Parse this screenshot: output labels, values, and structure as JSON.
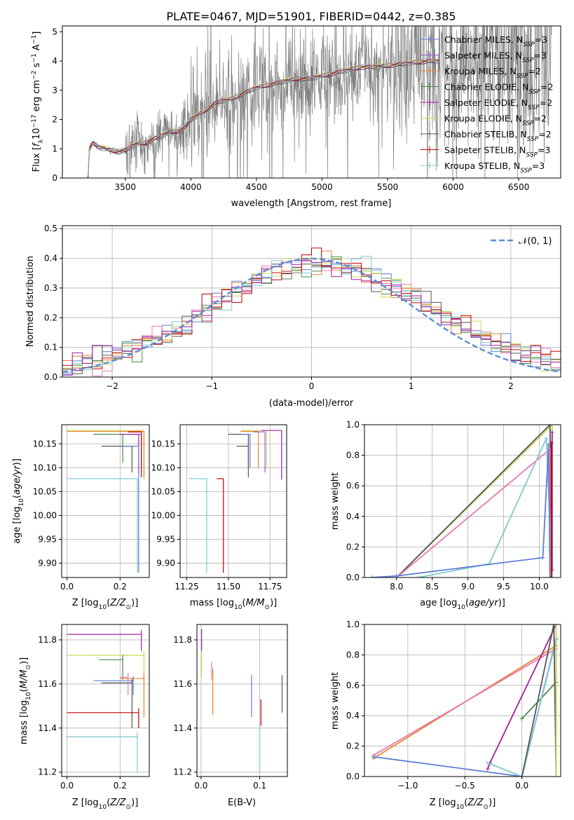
{
  "figure_title": "PLATE=0467, MJD=51901, FIBERID=0442, z=0.385",
  "colors": {
    "chabrier_miles": "#5b7fd6",
    "salpeter_miles": "#9b59c9",
    "kroupa_miles": "#e8822e",
    "chabrier_elodie": "#4a8a4a",
    "salpeter_elodie": "#a020a0",
    "kroupa_elodie": "#c8d858",
    "chabrier_stelib": "#555555",
    "salpeter_stelib": "#c00000",
    "kroupa_stelib": "#80c8d0",
    "data": "#808080",
    "pink": "#e878b0",
    "gauss": "#5b8dd6"
  },
  "chart_data": [
    {
      "id": "spectrum",
      "type": "line",
      "xlabel": "wavelength [Angstrom, rest frame]",
      "ylabel": "Flux [f_λ10^-17 erg cm^-2 s^-1 A^-1]",
      "xlim": [
        3020,
        6820
      ],
      "ylim": [
        0,
        5.2
      ],
      "xticks": [
        3500,
        4000,
        4500,
        5000,
        5500,
        6000,
        6500
      ],
      "yticks": [
        0,
        1,
        2,
        3,
        4,
        5
      ],
      "legend_position": "top-right",
      "legend": [
        "Chabrier MILES, N_SSP=3",
        "Salpeter MILES, N_SSP=3",
        "Kroupa MILES, N_SSP=2",
        "Chabrier ELODIE, N_SSP=2",
        "Salpeter ELODIE, N_SSP=2",
        "Kroupa ELODIE, N_SSP=2",
        "Chabrier STELIB, N_SSP=2",
        "Salpeter STELIB, N_SSP=3",
        "Kroupa STELIB, N_SSP=3"
      ],
      "model_continuum": [
        [
          3200,
          0.0
        ],
        [
          3215,
          0.02
        ],
        [
          3225,
          1.0
        ],
        [
          3250,
          1.2
        ],
        [
          3300,
          1.05
        ],
        [
          3350,
          1.0
        ],
        [
          3400,
          0.95
        ],
        [
          3450,
          0.9
        ],
        [
          3500,
          0.95
        ],
        [
          3550,
          1.1
        ],
        [
          3600,
          1.2
        ],
        [
          3650,
          1.2
        ],
        [
          3700,
          1.3
        ],
        [
          3750,
          1.4
        ],
        [
          3800,
          1.5
        ],
        [
          3850,
          1.6
        ],
        [
          3900,
          1.6
        ],
        [
          3950,
          1.7
        ],
        [
          4000,
          2.0
        ],
        [
          4100,
          2.3
        ],
        [
          4200,
          2.6
        ],
        [
          4300,
          2.7
        ],
        [
          4400,
          2.9
        ],
        [
          4500,
          3.1
        ],
        [
          4600,
          3.2
        ],
        [
          4700,
          3.3
        ],
        [
          4800,
          3.4
        ],
        [
          4900,
          3.4
        ],
        [
          5000,
          3.5
        ],
        [
          5100,
          3.6
        ],
        [
          5200,
          3.7
        ],
        [
          5300,
          3.8
        ],
        [
          5400,
          3.8
        ],
        [
          5500,
          3.85
        ],
        [
          5600,
          3.9
        ],
        [
          5700,
          3.95
        ],
        [
          5800,
          4.0
        ],
        [
          5900,
          4.0
        ]
      ]
    },
    {
      "id": "residual_hist",
      "type": "histogram",
      "xlabel": "(data-model)/error",
      "ylabel": "Normed distribution",
      "xlim": [
        -2.5,
        2.5
      ],
      "ylim": [
        0,
        0.51
      ],
      "xticks": [
        -2,
        -1,
        0,
        1,
        2
      ],
      "yticks": [
        0.0,
        0.1,
        0.2,
        0.3,
        0.4,
        0.5
      ],
      "grid": true,
      "legend_position": "top-right",
      "gauss_label": "𝒩(0, 1)"
    },
    {
      "id": "age_vs_Z",
      "type": "errorbar",
      "xlabel": "Z [log10(Z/Z⊙)]",
      "ylabel": "age  [log10(age/yr)]",
      "xlim": [
        -0.02,
        0.31
      ],
      "ylim": [
        9.87,
        10.19
      ],
      "xticks": [
        0.0,
        0.2
      ],
      "yticks": [
        9.9,
        9.95,
        10.0,
        10.05,
        10.1,
        10.15
      ],
      "grid": true
    },
    {
      "id": "age_vs_mass",
      "type": "errorbar",
      "xlabel": "mass [log10(M/M⊙)]",
      "xlim": [
        11.21,
        11.85
      ],
      "ylim": [
        9.87,
        10.19
      ],
      "xticks": [
        11.25,
        11.5,
        11.75
      ],
      "yticks": [
        9.9,
        9.95,
        10.0,
        10.05,
        10.1,
        10.15
      ],
      "grid": true
    },
    {
      "id": "massweight_vs_age",
      "type": "line",
      "xlabel": "age  [log10(age/yr)]",
      "ylabel": "mass weight",
      "xlim": [
        7.55,
        10.3
      ],
      "ylim": [
        0,
        1.0
      ],
      "xticks": [
        8.0,
        8.5,
        9.0,
        9.5,
        10.0
      ],
      "yticks": [
        0.0,
        0.2,
        0.4,
        0.6,
        0.8,
        1.0
      ],
      "grid": true
    },
    {
      "id": "mass_vs_Z",
      "type": "errorbar",
      "xlabel": "Z [log10(Z/Z⊙)]",
      "ylabel": "mass [log10(M/M⊙)]",
      "xlim": [
        -0.02,
        0.31
      ],
      "ylim": [
        11.18,
        11.87
      ],
      "xticks": [
        0.0,
        0.2
      ],
      "yticks": [
        11.2,
        11.4,
        11.6,
        11.8
      ],
      "grid": true
    },
    {
      "id": "mass_vs_ebv",
      "type": "errorbar",
      "xlabel": "E(B-V)",
      "xlim": [
        -0.007,
        0.147
      ],
      "ylim": [
        11.18,
        11.87
      ],
      "xticks": [
        0.0,
        0.1
      ],
      "yticks": [
        11.2,
        11.4,
        11.6,
        11.8
      ],
      "grid": true
    },
    {
      "id": "massweight_vs_Z",
      "type": "line",
      "xlabel": "Z [log10(Z/Z⊙)]",
      "ylabel": "mass weight",
      "xlim": [
        -1.38,
        0.34
      ],
      "ylim": [
        0,
        1.0
      ],
      "xticks": [
        -1.0,
        -0.5,
        0.0
      ],
      "yticks": [
        0.0,
        0.2,
        0.4,
        0.6,
        0.8,
        1.0
      ],
      "grid": true
    }
  ]
}
